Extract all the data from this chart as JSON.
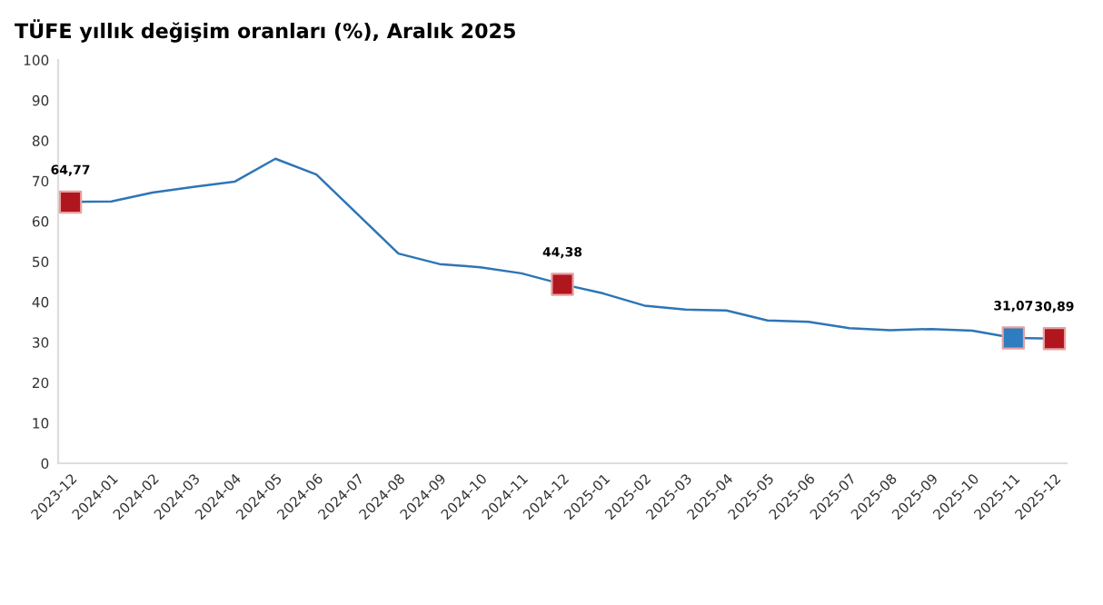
{
  "chart_data": {
    "type": "line",
    "title": "TÜFE yıllık değişim oranları (%), Aralık 2025",
    "categories": [
      "2023-12",
      "2024-01",
      "2024-02",
      "2024-03",
      "2024-04",
      "2024-05",
      "2024-06",
      "2024-07",
      "2024-08",
      "2024-09",
      "2024-10",
      "2024-11",
      "2024-12",
      "2025-01",
      "2025-02",
      "2025-03",
      "2025-04",
      "2025-05",
      "2025-06",
      "2025-07",
      "2025-08",
      "2025-09",
      "2025-10",
      "2025-11",
      "2025-12"
    ],
    "series": [
      {
        "color": "#2e75b6",
        "marker": "none",
        "values": [
          64.8,
          64.9,
          67.1,
          68.5,
          69.8,
          75.5,
          71.6,
          61.8,
          52.0,
          49.4,
          48.6,
          47.1,
          44.4,
          42.1,
          39.1,
          38.1,
          37.9,
          35.4,
          35.1,
          33.5,
          33.0,
          33.3,
          32.9,
          31.1,
          30.9
        ]
      },
      {
        "type": "scatter",
        "marker": "square",
        "colors": [
          "#b0161e",
          null,
          null,
          null,
          null,
          null,
          null,
          null,
          null,
          null,
          null,
          null,
          "#b0161e",
          null,
          null,
          null,
          null,
          null,
          null,
          null,
          null,
          null,
          null,
          "#2e7dc0",
          "#b0161e"
        ],
        "values": [
          64.77,
          null,
          null,
          null,
          null,
          null,
          null,
          null,
          null,
          null,
          null,
          null,
          44.38,
          null,
          null,
          null,
          null,
          null,
          null,
          null,
          null,
          null,
          null,
          31.07,
          30.89
        ],
        "value_labels": [
          "64,77",
          null,
          null,
          null,
          null,
          null,
          null,
          null,
          null,
          null,
          null,
          null,
          "44,38",
          null,
          null,
          null,
          null,
          null,
          null,
          null,
          null,
          null,
          null,
          "31,07",
          "30,89"
        ]
      }
    ],
    "ylim": [
      0,
      100
    ],
    "yticks": [
      0,
      10,
      20,
      30,
      40,
      50,
      60,
      70,
      80,
      90,
      100
    ],
    "grid": false,
    "legend": false
  }
}
